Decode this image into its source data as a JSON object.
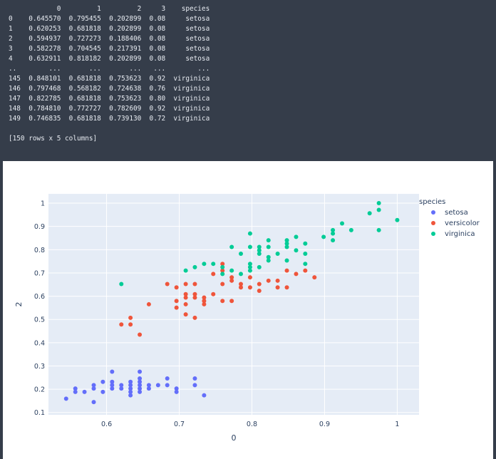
{
  "dataframe": {
    "header": "            0         1         2     3    species",
    "rows": [
      "0    0.645570  0.795455  0.202899  0.08     setosa",
      "1    0.620253  0.681818  0.202899  0.08     setosa",
      "2    0.594937  0.727273  0.188406  0.08     setosa",
      "3    0.582278  0.704545  0.217391  0.08     setosa",
      "4    0.632911  0.818182  0.202899  0.08     setosa",
      "..        ...       ...       ...   ...        ...",
      "145  0.848101  0.681818  0.753623  0.92  virginica",
      "146  0.797468  0.568182  0.724638  0.76  virginica",
      "147  0.822785  0.681818  0.753623  0.80  virginica",
      "148  0.784810  0.772727  0.782609  0.92  virginica",
      "149  0.746835  0.681818  0.739130  0.72  virginica"
    ],
    "footer": "[150 rows x 5 columns]"
  },
  "chart_data": {
    "type": "scatter",
    "xlabel": "0",
    "ylabel": "2",
    "xlim": [
      0.52,
      1.03
    ],
    "ylim": [
      0.09,
      1.04
    ],
    "xticks": [
      "0.6",
      "0.7",
      "0.8",
      "0.9",
      "1"
    ],
    "yticks": [
      "0.1",
      "0.2",
      "0.3",
      "0.4",
      "0.5",
      "0.6",
      "0.7",
      "0.8",
      "0.9",
      "1"
    ],
    "grid": true,
    "legend_title": "species",
    "legend_position": "top-right",
    "series": [
      {
        "name": "setosa",
        "color": "#636efa",
        "points": [
          [
            0.5443,
            0.1594
          ],
          [
            0.557,
            0.1884
          ],
          [
            0.557,
            0.2029
          ],
          [
            0.5696,
            0.1884
          ],
          [
            0.5823,
            0.1449
          ],
          [
            0.5823,
            0.2029
          ],
          [
            0.5823,
            0.2174
          ],
          [
            0.5949,
            0.1884
          ],
          [
            0.5949,
            0.2319
          ],
          [
            0.6076,
            0.2029
          ],
          [
            0.6076,
            0.2174
          ],
          [
            0.6076,
            0.2319
          ],
          [
            0.6076,
            0.2754
          ],
          [
            0.6203,
            0.2029
          ],
          [
            0.6203,
            0.2174
          ],
          [
            0.6329,
            0.1739
          ],
          [
            0.6329,
            0.1884
          ],
          [
            0.6329,
            0.2029
          ],
          [
            0.6329,
            0.2174
          ],
          [
            0.6329,
            0.2319
          ],
          [
            0.6456,
            0.1884
          ],
          [
            0.6456,
            0.2029
          ],
          [
            0.6456,
            0.2174
          ],
          [
            0.6456,
            0.2319
          ],
          [
            0.6456,
            0.2464
          ],
          [
            0.6456,
            0.2754
          ],
          [
            0.6582,
            0.2029
          ],
          [
            0.6582,
            0.2174
          ],
          [
            0.6709,
            0.2174
          ],
          [
            0.6835,
            0.2174
          ],
          [
            0.6835,
            0.2464
          ],
          [
            0.6962,
            0.1884
          ],
          [
            0.6962,
            0.2029
          ],
          [
            0.7215,
            0.2174
          ],
          [
            0.7215,
            0.2464
          ],
          [
            0.7342,
            0.1739
          ]
        ]
      },
      {
        "name": "versicolor",
        "color": "#ef553b",
        "points": [
          [
            0.6203,
            0.4783
          ],
          [
            0.6329,
            0.4783
          ],
          [
            0.6329,
            0.5072
          ],
          [
            0.6456,
            0.4348
          ],
          [
            0.6582,
            0.5652
          ],
          [
            0.6835,
            0.6522
          ],
          [
            0.6962,
            0.5507
          ],
          [
            0.6962,
            0.5797
          ],
          [
            0.6962,
            0.6377
          ],
          [
            0.7089,
            0.5217
          ],
          [
            0.7089,
            0.5652
          ],
          [
            0.7089,
            0.5942
          ],
          [
            0.7089,
            0.6087
          ],
          [
            0.7089,
            0.6522
          ],
          [
            0.7215,
            0.5072
          ],
          [
            0.7215,
            0.5942
          ],
          [
            0.7215,
            0.6087
          ],
          [
            0.7215,
            0.6522
          ],
          [
            0.7342,
            0.5652
          ],
          [
            0.7342,
            0.5797
          ],
          [
            0.7342,
            0.5942
          ],
          [
            0.7468,
            0.6087
          ],
          [
            0.7468,
            0.6957
          ],
          [
            0.7595,
            0.5797
          ],
          [
            0.7595,
            0.6522
          ],
          [
            0.7595,
            0.7101
          ],
          [
            0.7595,
            0.7391
          ],
          [
            0.7722,
            0.5797
          ],
          [
            0.7722,
            0.6667
          ],
          [
            0.7722,
            0.6812
          ],
          [
            0.7848,
            0.6377
          ],
          [
            0.7848,
            0.6522
          ],
          [
            0.7975,
            0.6377
          ],
          [
            0.7975,
            0.6812
          ],
          [
            0.8101,
            0.6232
          ],
          [
            0.8101,
            0.6522
          ],
          [
            0.8228,
            0.6667
          ],
          [
            0.8354,
            0.6377
          ],
          [
            0.8354,
            0.6667
          ],
          [
            0.8481,
            0.6377
          ],
          [
            0.8481,
            0.7101
          ],
          [
            0.8608,
            0.6957
          ],
          [
            0.8734,
            0.7101
          ],
          [
            0.8861,
            0.6812
          ]
        ]
      },
      {
        "name": "virginica",
        "color": "#00cc96",
        "points": [
          [
            0.6203,
            0.6522
          ],
          [
            0.7089,
            0.7101
          ],
          [
            0.7215,
            0.7246
          ],
          [
            0.7342,
            0.7391
          ],
          [
            0.7468,
            0.7391
          ],
          [
            0.7595,
            0.6957
          ],
          [
            0.7595,
            0.7246
          ],
          [
            0.7722,
            0.7101
          ],
          [
            0.7722,
            0.8116
          ],
          [
            0.7848,
            0.6957
          ],
          [
            0.7848,
            0.7826
          ],
          [
            0.7975,
            0.7101
          ],
          [
            0.7975,
            0.7246
          ],
          [
            0.7975,
            0.7391
          ],
          [
            0.7975,
            0.8116
          ],
          [
            0.7975,
            0.8696
          ],
          [
            0.8101,
            0.7246
          ],
          [
            0.8101,
            0.7826
          ],
          [
            0.8101,
            0.7971
          ],
          [
            0.8101,
            0.8116
          ],
          [
            0.8228,
            0.7536
          ],
          [
            0.8228,
            0.7681
          ],
          [
            0.8228,
            0.8116
          ],
          [
            0.8228,
            0.8406
          ],
          [
            0.8354,
            0.7826
          ],
          [
            0.8481,
            0.7536
          ],
          [
            0.8481,
            0.8116
          ],
          [
            0.8481,
            0.8261
          ],
          [
            0.8481,
            0.8406
          ],
          [
            0.8608,
            0.7971
          ],
          [
            0.8608,
            0.8551
          ],
          [
            0.8734,
            0.7391
          ],
          [
            0.8734,
            0.7826
          ],
          [
            0.8734,
            0.8261
          ],
          [
            0.8987,
            0.8551
          ],
          [
            0.9114,
            0.8406
          ],
          [
            0.9114,
            0.8696
          ],
          [
            0.9114,
            0.8841
          ],
          [
            0.9241,
            0.913
          ],
          [
            0.9367,
            0.8841
          ],
          [
            0.962,
            0.9565
          ],
          [
            0.9747,
            0.8841
          ],
          [
            0.9747,
            0.971
          ],
          [
            0.9747,
            1.0
          ],
          [
            1.0,
            0.9275
          ]
        ]
      }
    ]
  }
}
